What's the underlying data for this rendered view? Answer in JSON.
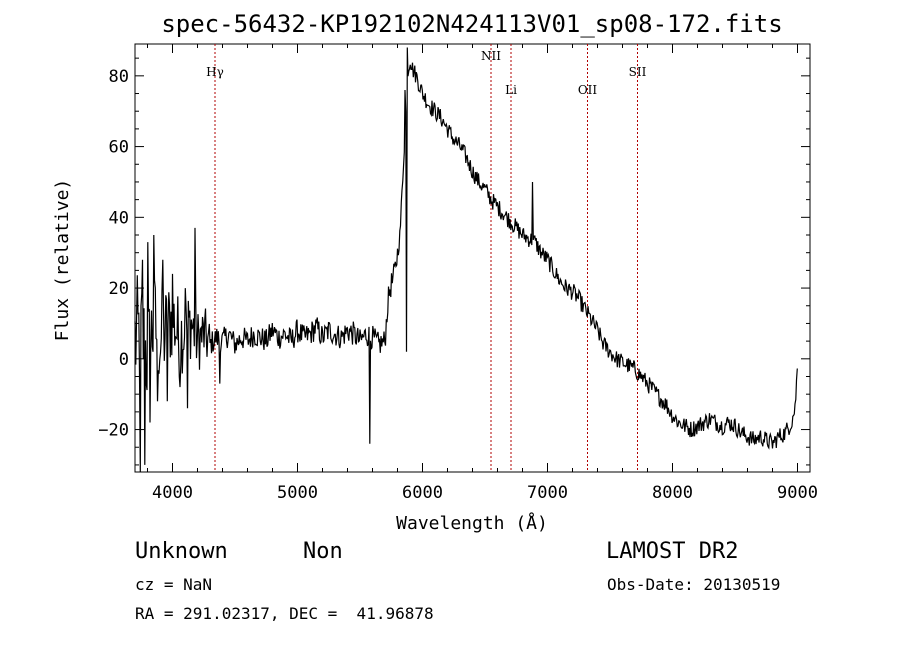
{
  "chart_data": {
    "type": "line",
    "title": "spec-56432-KP192102N424113V01_sp08-172.fits",
    "xlabel": "Wavelength (Å)",
    "ylabel": "Flux (relative)",
    "xlim": [
      3700,
      9100
    ],
    "ylim": [
      -32,
      89
    ],
    "x_ticks": [
      4000,
      5000,
      6000,
      7000,
      8000,
      9000
    ],
    "y_ticks": [
      -20,
      0,
      20,
      40,
      60,
      80
    ],
    "grid": false,
    "series": [
      {
        "x": [
          3700,
          3750,
          3800,
          3850,
          3900,
          3950,
          4000,
          4050,
          4100,
          4150,
          4200,
          4250,
          4300,
          4350,
          4400,
          4450,
          4500,
          4550,
          4600,
          4650,
          4700,
          4750,
          4800,
          4850,
          4900,
          4950,
          5000,
          5050,
          5100,
          5150,
          5200,
          5250,
          5300,
          5350,
          5400,
          5450,
          5500,
          5550,
          5600,
          5650,
          5700,
          5720,
          5740,
          5760,
          5780,
          5800,
          5820,
          5840,
          5860,
          5880,
          5900,
          5920,
          5950,
          6000,
          6050,
          6100,
          6150,
          6200,
          6250,
          6300,
          6350,
          6400,
          6450,
          6500,
          6550,
          6600,
          6650,
          6700,
          6750,
          6800,
          6850,
          6900,
          6950,
          7000,
          7050,
          7100,
          7150,
          7200,
          7250,
          7300,
          7350,
          7400,
          7450,
          7500,
          7550,
          7600,
          7650,
          7700,
          7750,
          7800,
          7850,
          7900,
          7950,
          8000,
          8050,
          8100,
          8150,
          8200,
          8250,
          8300,
          8350,
          8400,
          8450,
          8500,
          8550,
          8600,
          8650,
          8700,
          8750,
          8800,
          8850,
          8900,
          8950,
          8980,
          9000
        ],
        "y": [
          5,
          8,
          0,
          10,
          5,
          8,
          12,
          6,
          8,
          10,
          5,
          7,
          4,
          6,
          5,
          7,
          4,
          6,
          5,
          7,
          6,
          5,
          8,
          6,
          7,
          5,
          8,
          6,
          7,
          9,
          6,
          8,
          7,
          6,
          8,
          7,
          5,
          7,
          6,
          4,
          5,
          15,
          20,
          22,
          25,
          30,
          35,
          50,
          65,
          80,
          85,
          82,
          80,
          75,
          72,
          70,
          68,
          65,
          62,
          60,
          57,
          53,
          50,
          48,
          45,
          43,
          41,
          39,
          37,
          35,
          34,
          33,
          30,
          28,
          25,
          22,
          20,
          19,
          17,
          14,
          11,
          8,
          4,
          2,
          0,
          -1,
          -2,
          -3,
          -5,
          -7,
          -9,
          -11,
          -13,
          -16,
          -18,
          -19,
          -20,
          -19,
          -18,
          -17,
          -18,
          -19,
          -18,
          -19,
          -21,
          -22,
          -23,
          -22,
          -23,
          -24,
          -22,
          -21,
          -18,
          -14,
          -2
        ],
        "spikes": [
          {
            "x": 3740,
            "y": -32
          },
          {
            "x": 3760,
            "y": 28
          },
          {
            "x": 3780,
            "y": -30
          },
          {
            "x": 3800,
            "y": 33
          },
          {
            "x": 3820,
            "y": -18
          },
          {
            "x": 3850,
            "y": 35
          },
          {
            "x": 3880,
            "y": -12
          },
          {
            "x": 3920,
            "y": 28
          },
          {
            "x": 3960,
            "y": -12
          },
          {
            "x": 4000,
            "y": 24
          },
          {
            "x": 4060,
            "y": -8
          },
          {
            "x": 4100,
            "y": 20
          },
          {
            "x": 4120,
            "y": -14
          },
          {
            "x": 4180,
            "y": 37
          },
          {
            "x": 4380,
            "y": -7
          },
          {
            "x": 5580,
            "y": -24
          },
          {
            "x": 5860,
            "y": 76
          },
          {
            "x": 5870,
            "y": 2
          },
          {
            "x": 5880,
            "y": 88
          },
          {
            "x": 6880,
            "y": 50
          }
        ]
      }
    ],
    "lines": [
      {
        "label": "Hγ",
        "x": 4340
      },
      {
        "label": "NII",
        "x": 6548
      },
      {
        "label": "Li",
        "x": 6708
      },
      {
        "label": "OII",
        "x": 7320
      },
      {
        "label": "SII",
        "x": 7720
      }
    ]
  },
  "info": {
    "class": "Unknown",
    "subclass": "Non",
    "survey": "LAMOST DR2",
    "cz": "cz = NaN",
    "obs_date": "Obs-Date: 20130519",
    "coords": "RA = 291.02317, DEC =  41.96878"
  }
}
